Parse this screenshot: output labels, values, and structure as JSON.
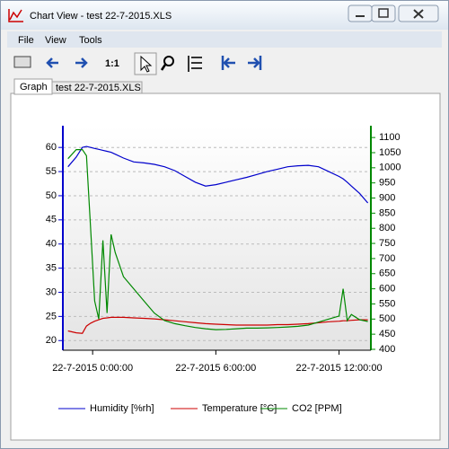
{
  "window": {
    "title": "Chart View - test 22-7-2015.XLS"
  },
  "menu": [
    "File",
    "View",
    "Tools"
  ],
  "toolbar": {
    "zoom_label": "1:1"
  },
  "tabs": [
    "Graph",
    "test 22-7-2015.XLS"
  ],
  "chart_data": {
    "type": "line",
    "x": [
      -1.2,
      -0.8,
      -0.5,
      -0.3,
      -0.1,
      0.1,
      0.3,
      0.5,
      0.7,
      0.9,
      1.1,
      1.5,
      2,
      2.5,
      3,
      3.5,
      4,
      4.5,
      5,
      5.5,
      6,
      6.5,
      7,
      7.5,
      8,
      8.5,
      9,
      9.5,
      10,
      10.5,
      11,
      11.5,
      12,
      12.2,
      12.4,
      12.6,
      13,
      13.4
    ],
    "series": [
      {
        "name": "Humidity [%rh]",
        "color": "#0000cc",
        "values": [
          56,
          58,
          60,
          60.2,
          60,
          59.8,
          59.6,
          59.4,
          59.2,
          59,
          58.6,
          57.8,
          57,
          56.8,
          56.5,
          56,
          55.2,
          54,
          52.8,
          52,
          52.3,
          52.8,
          53.3,
          53.8,
          54.4,
          55,
          55.5,
          56,
          56.2,
          56.3,
          56,
          55,
          54,
          53.5,
          52.8,
          52,
          50.5,
          48.5
        ]
      },
      {
        "name": "Temperature [°C]",
        "color": "#cc0000",
        "values": [
          22,
          21.6,
          21.5,
          23,
          23.6,
          24,
          24.3,
          24.6,
          24.7,
          24.8,
          24.8,
          24.8,
          24.7,
          24.6,
          24.5,
          24.3,
          24.1,
          23.9,
          23.7,
          23.5,
          23.4,
          23.3,
          23.2,
          23.2,
          23.2,
          23.2,
          23.3,
          23.3,
          23.4,
          23.5,
          23.7,
          23.9,
          24,
          24.1,
          24.1,
          24.2,
          24.3,
          24.3
        ]
      },
      {
        "name": "CO2 [PPM]",
        "color": "#008800",
        "axis": "y2",
        "values": [
          1030,
          1060,
          1060,
          1040,
          800,
          560,
          500,
          760,
          520,
          780,
          720,
          640,
          600,
          560,
          520,
          495,
          485,
          478,
          472,
          468,
          465,
          466,
          468,
          470,
          470,
          471,
          472,
          474,
          476,
          480,
          490,
          500,
          510,
          600,
          495,
          515,
          498,
          492
        ]
      }
    ],
    "xlim": [
      -1.45,
      13.55
    ],
    "xticks": [
      {
        "value": 0,
        "label": "22-7-2015 0:00:00"
      },
      {
        "value": 6,
        "label": "22-7-2015 6:00:00"
      },
      {
        "value": 12,
        "label": "22-7-2015 12:00:00"
      }
    ],
    "ylim": [
      18,
      64.5
    ],
    "yticks": [
      20,
      25,
      30,
      35,
      40,
      45,
      50,
      55,
      60
    ],
    "y2lim": [
      397,
      1139
    ],
    "y2ticks": [
      400,
      450,
      500,
      550,
      600,
      650,
      700,
      750,
      800,
      850,
      900,
      950,
      1000,
      1050,
      1100
    ],
    "y_color": "#0000cc",
    "y2_color": "#008800",
    "grid": true,
    "legend": "bottom"
  }
}
